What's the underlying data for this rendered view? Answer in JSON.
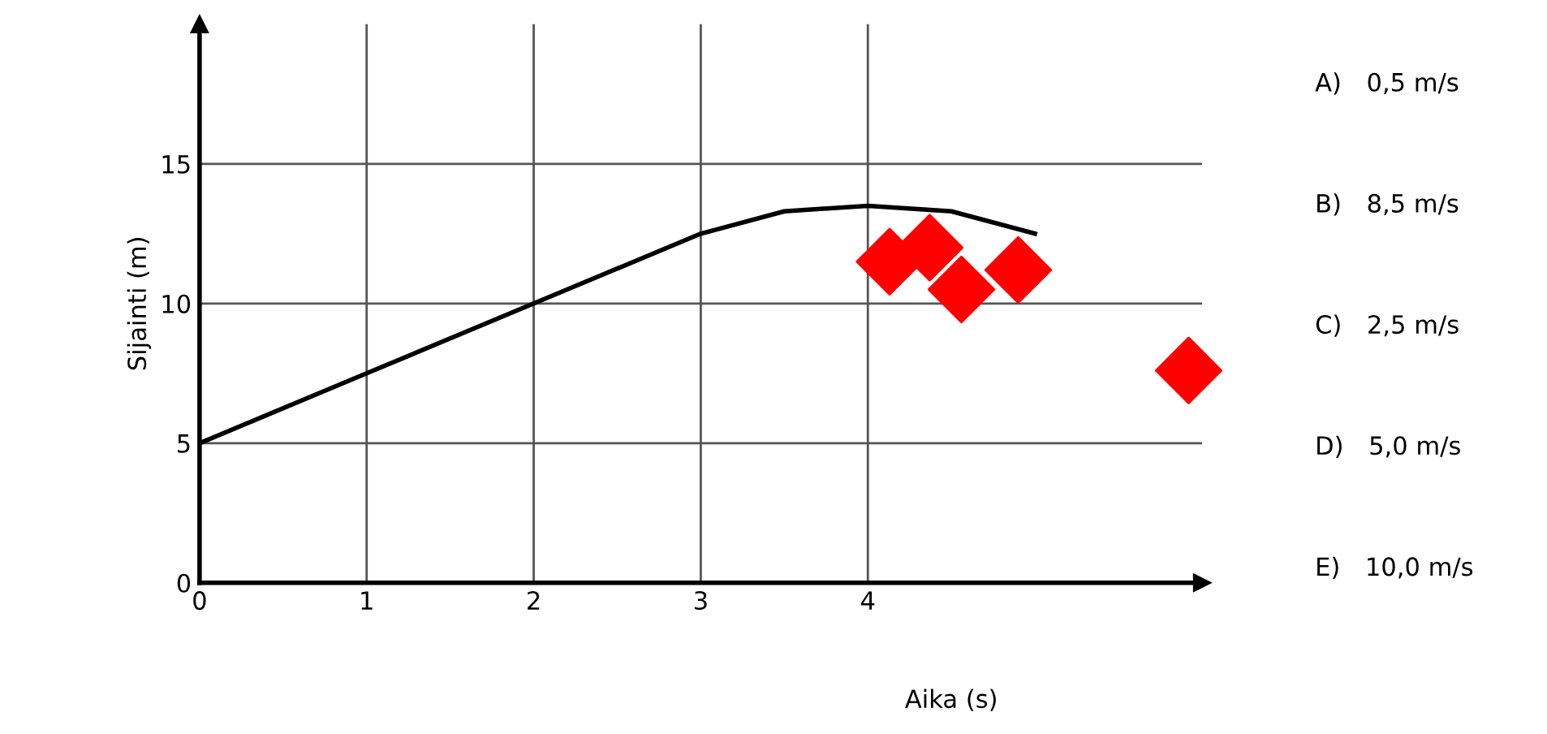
{
  "chart_data": {
    "type": "line",
    "xlabel": "Aika (s)",
    "ylabel": "Sijainti (m)",
    "xlim": [
      0,
      6
    ],
    "ylim": [
      0,
      20
    ],
    "xticks": [
      0,
      1,
      2,
      3,
      4
    ],
    "yticks": [
      0,
      5,
      10,
      15
    ],
    "grid": true,
    "series": [
      {
        "color": "#000000",
        "x": [
          0,
          1,
          2,
          3,
          3.5,
          4,
          4.5,
          5
        ],
        "values": [
          5,
          7.5,
          10,
          12.5,
          13.3,
          13.5,
          13.3,
          12.5
        ]
      },
      {
        "type": "scatter",
        "color": "#ff0000",
        "marker": "diamond",
        "x": [
          4.13,
          4.37,
          4.56,
          4.9,
          5.92
        ],
        "values": [
          11.5,
          12.0,
          10.5,
          11.2,
          7.6
        ]
      }
    ],
    "annotations": [
      "A) 0,5 m/s",
      "B) 8,5 m/s",
      "C) 2,5 m/s",
      "D) 5,0 m/s",
      "E) 10,0 m/s"
    ]
  }
}
